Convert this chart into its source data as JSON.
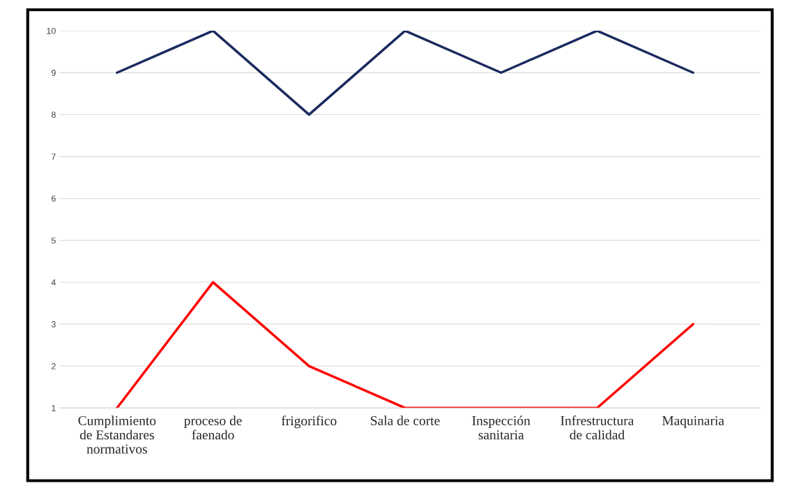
{
  "chart_data": {
    "type": "line",
    "categories": [
      "Cumplimiento\nde Estandares\nnormativos",
      "proceso de\nfaenado",
      "frigorifico",
      "Sala de corte",
      "Inspección\nsanitaria",
      "Infrestructura\nde calidad",
      "Maquinaria"
    ],
    "series": [
      {
        "color": "#1b2a5e",
        "values": [
          9,
          10,
          8,
          10,
          9,
          10,
          9
        ]
      },
      {
        "color": "#ff0000",
        "values": [
          1,
          4,
          2,
          1,
          1,
          1,
          3
        ]
      }
    ],
    "ylim": [
      1,
      10
    ],
    "yticks": [
      1,
      2,
      3,
      4,
      5,
      6,
      7,
      8,
      9,
      10
    ],
    "grid": "y",
    "legend": false,
    "marker": "none",
    "line_style": "solid"
  }
}
